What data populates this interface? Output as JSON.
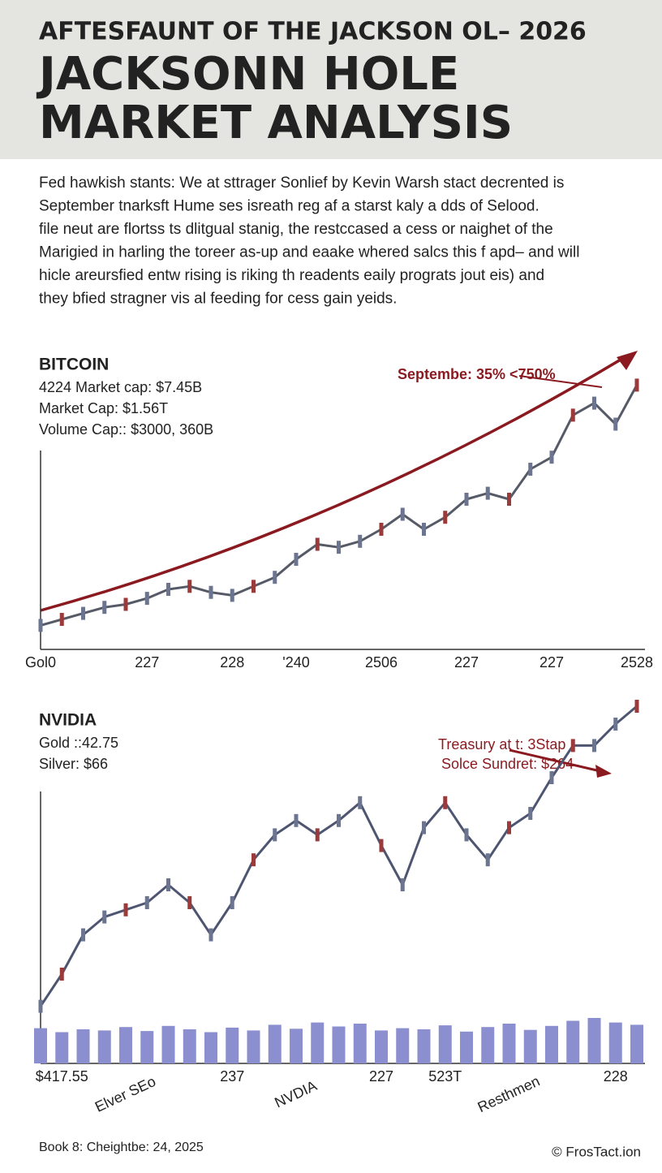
{
  "header": {
    "kicker": "AFTESFAUNT OF THE JACKSON OL– 2026",
    "title_lines": [
      "JACKSONN HOLE",
      "MARKET ANALYSIS"
    ]
  },
  "body": [
    "Fed hawkish stants: We at sttrager Sonlief by Kevin Warsh stact decrented is",
    "September tnarksft Hume ses isreath reg af a starst kaly a dds of Selood.",
    "file neut are flortss ts dlitgual stanig, the restccased a cess or naighet of the",
    "Marigied in harling the toreer as-up and eaake whered salcs this f apd– and will",
    "hicle areursfied entw rising is riking th readents eaily prograts jout eis) and",
    "they bfied stragner vis al feeding for cess gain yeids."
  ],
  "chart_data": [
    {
      "type": "line",
      "title": "BITCOIN",
      "stats": [
        "4224 Market cap: $7.45B",
        "Market Cap: $1.56T",
        "Volume Cap:: $3000, 360B"
      ],
      "annotation": "Septembe: 35% <750%",
      "color": "#555a66",
      "categories": [
        "Gol0",
        null,
        null,
        null,
        null,
        "227",
        null,
        null,
        null,
        "228",
        null,
        null,
        "'240",
        null,
        null,
        null,
        "2506",
        null,
        null,
        null,
        "227",
        null,
        null,
        null,
        "227",
        null,
        null,
        null,
        "2528"
      ],
      "values": [
        8,
        10,
        12,
        14,
        15,
        17,
        20,
        21,
        19,
        18,
        21,
        24,
        30,
        35,
        34,
        36,
        40,
        45,
        40,
        44,
        50,
        52,
        50,
        60,
        64,
        78,
        82,
        75,
        88
      ],
      "ylim": [
        0,
        100
      ]
    },
    {
      "type": "line",
      "title": "NVIDIA",
      "stats": [
        "Gold ::42.75",
        "Silver:  $66"
      ],
      "annotation": [
        "Treasury at t: 3Stap",
        "Solce Sundret: $264"
      ],
      "color": "#4d5570",
      "volume_color": "#8b8fd0",
      "categories": [
        null,
        "$417.55",
        null,
        null,
        "Elver SEo",
        null,
        null,
        null,
        null,
        "237",
        null,
        null,
        "NVDIA",
        null,
        null,
        null,
        "227",
        null,
        null,
        "523T",
        null,
        null,
        "Resthmen",
        null,
        null,
        null,
        null,
        "228",
        null
      ],
      "values": [
        16,
        25,
        36,
        41,
        43,
        45,
        50,
        45,
        36,
        45,
        57,
        64,
        68,
        64,
        68,
        73,
        61,
        50,
        66,
        73,
        64,
        57,
        66,
        70,
        80,
        89,
        89,
        95,
        100
      ],
      "ylim": [
        0,
        100
      ],
      "volume": [
        62,
        55,
        60,
        58,
        64,
        57,
        66,
        60,
        55,
        63,
        58,
        68,
        61,
        72,
        65,
        70,
        58,
        62,
        60,
        67,
        56,
        64,
        70,
        59,
        66,
        75,
        80,
        72,
        68
      ],
      "volume_lim": [
        0,
        100
      ]
    }
  ],
  "footer": {
    "left": "Book 8: Cheightbe: 24, 2025",
    "right": "© FrosTact.ion"
  }
}
